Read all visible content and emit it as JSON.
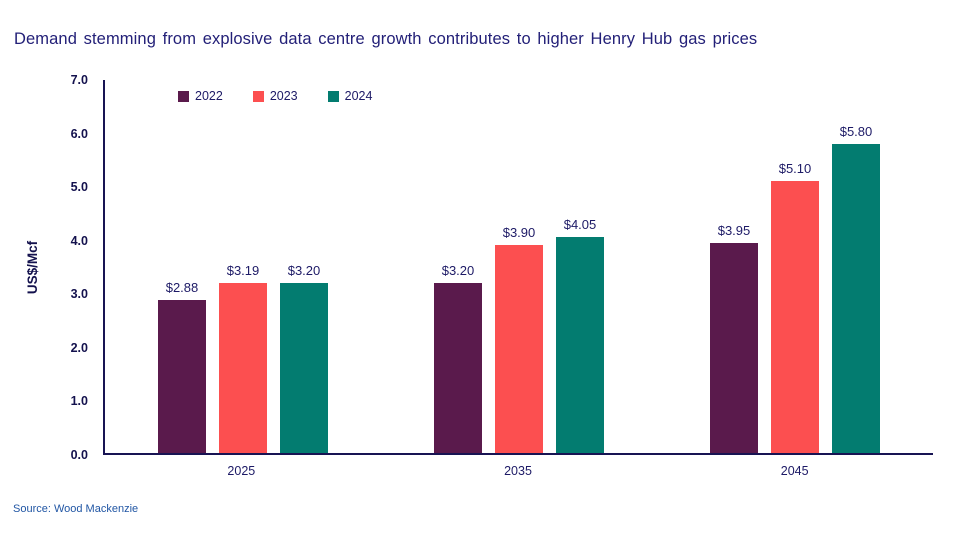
{
  "page": {
    "title": "Demand stemming from explosive data centre growth contributes to higher Henry Hub gas prices",
    "source": "Source: Wood Mackenzie"
  },
  "colors": {
    "title_text": "#232078",
    "label_text": "#1D1A66",
    "axis_text": "#13114D",
    "axis_line": "#181453",
    "source_text": "#2156A4"
  },
  "chart_data": {
    "type": "bar",
    "categories": [
      "2025",
      "2035",
      "2045"
    ],
    "series": [
      {
        "name": "2022",
        "color": "#5A1A4C",
        "values": [
          2.88,
          3.2,
          3.95
        ],
        "labels": [
          "$2.88",
          "$3.20",
          "$3.95"
        ]
      },
      {
        "name": "2023",
        "color": "#FC4F50",
        "values": [
          3.19,
          3.9,
          5.1
        ],
        "labels": [
          "$3.19",
          "$3.90",
          "$5.10"
        ]
      },
      {
        "name": "2024",
        "color": "#037C70",
        "values": [
          3.2,
          4.05,
          5.8
        ],
        "labels": [
          "$3.20",
          "$4.05",
          "$5.80"
        ]
      }
    ],
    "title": "Demand stemming from explosive data centre growth contributes to higher Henry Hub gas prices",
    "xlabel": "",
    "ylabel": "US$/Mcf",
    "ylim": [
      0,
      7
    ],
    "yticks": [
      "0.0",
      "1.0",
      "2.0",
      "3.0",
      "4.0",
      "5.0",
      "6.0",
      "7.0"
    ],
    "grid": false,
    "legend_position": "top-left"
  }
}
